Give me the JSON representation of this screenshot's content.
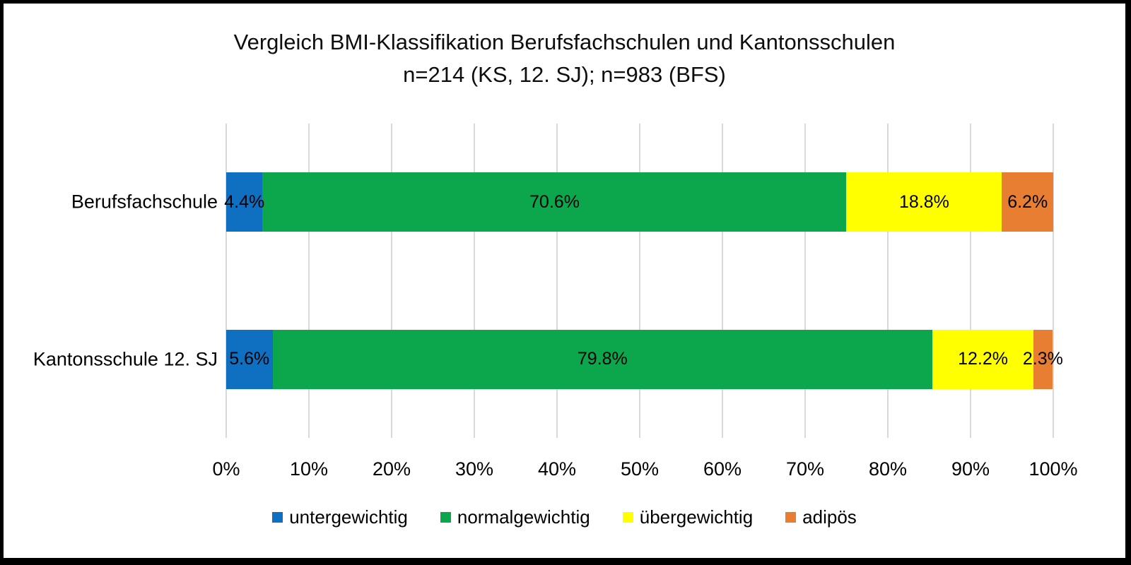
{
  "title": {
    "line1": "Vergleich BMI-Klassifikation Berufsfachschulen und Kantonsschulen",
    "line2": "n=214 (KS, 12. SJ); n=983 (BFS)"
  },
  "chart_data": {
    "type": "bar",
    "orientation": "horizontal",
    "stacked": true,
    "unit": "%",
    "title": "Vergleich BMI-Klassifikation Berufsfachschulen und Kantonsschulen n=214 (KS, 12. SJ); n=983 (BFS)",
    "categories": [
      "Berufsfachschule",
      "Kantonsschule 12. SJ"
    ],
    "series": [
      {
        "name": "untergewichtig",
        "color": "#0F70C2",
        "values": [
          4.4,
          5.6
        ]
      },
      {
        "name": "normalgewichtig",
        "color": "#0CA64C",
        "values": [
          70.6,
          79.8
        ]
      },
      {
        "name": "übergewichtig",
        "color": "#FFFF00",
        "values": [
          18.8,
          12.2
        ]
      },
      {
        "name": "adipös",
        "color": "#E87E31",
        "values": [
          6.2,
          2.3
        ]
      }
    ],
    "data_labels": [
      [
        "4.4%",
        "70.6%",
        "18.8%",
        "6.2%"
      ],
      [
        "5.6%",
        "79.8%",
        "12.2%",
        "2.3%"
      ]
    ],
    "x_ticks": [
      "0%",
      "10%",
      "20%",
      "30%",
      "40%",
      "50%",
      "60%",
      "70%",
      "80%",
      "90%",
      "100%"
    ],
    "xlim": [
      0,
      100
    ],
    "grid": true,
    "gridline_color": "#D9D9D9",
    "legend_position": "bottom"
  }
}
